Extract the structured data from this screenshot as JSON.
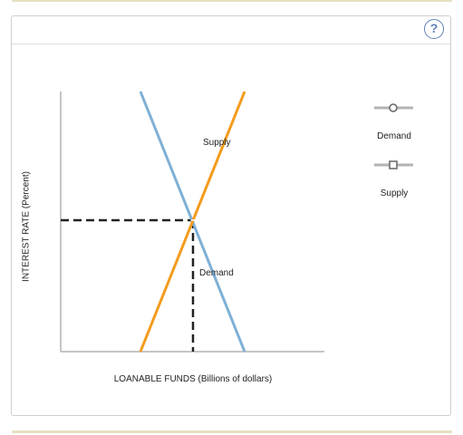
{
  "help": {
    "label": "?",
    "icon": "help-icon"
  },
  "graph": {
    "ylabel": "INTEREST RATE (Percent)",
    "xlabel": "LOANABLE FUNDS (Billions of dollars)",
    "supply_curve_label": "Supply",
    "demand_curve_label": "Demand",
    "colors": {
      "supply": "#f39c1c",
      "demand": "#7fb0d6",
      "axis": "#b3b3b3",
      "guide": "#222222"
    }
  },
  "legend": {
    "items": [
      {
        "label": "Demand",
        "icon": "circle-marker-icon"
      },
      {
        "label": "Supply",
        "icon": "square-marker-icon"
      }
    ]
  }
}
